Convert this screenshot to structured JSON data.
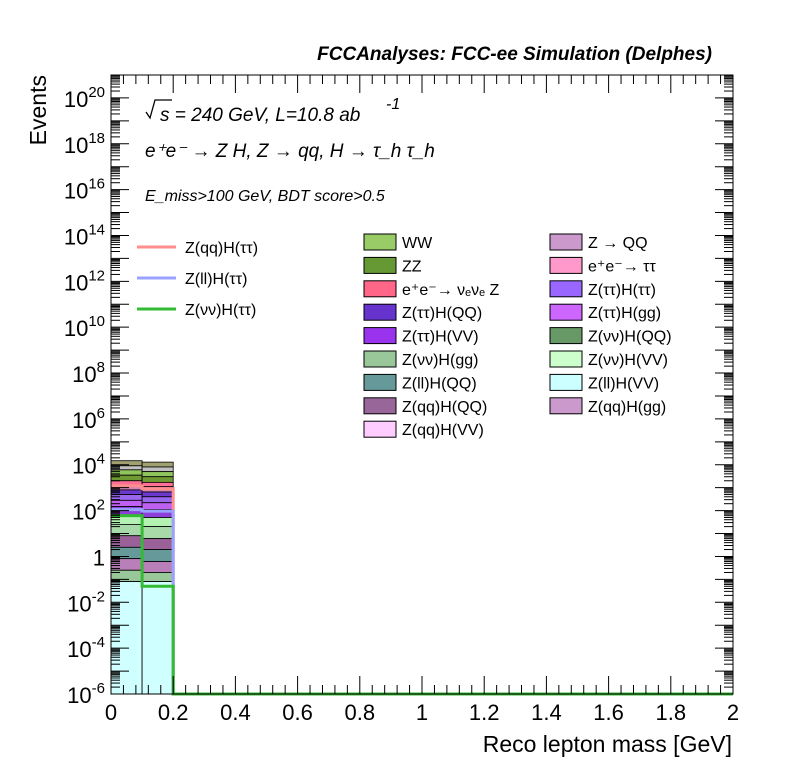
{
  "header": {
    "title": "FCCAnalyses: FCC-ee Simulation (Delphes)"
  },
  "annotations": {
    "sqrt_s": "s = 240 GeV, L=10.8 ab",
    "lumi_exp": "-1",
    "process": "e⁺e⁻ → Z H, Z → qq, H → τ_h τ_h",
    "cuts": "E_miss>100 GeV, BDT score>0.5"
  },
  "chart_data": {
    "type": "histogram",
    "title": "FCCAnalyses: FCC-ee Simulation (Delphes)",
    "xlabel": "Reco lepton mass [GeV]",
    "ylabel": "Events",
    "xlim": [
      0,
      2
    ],
    "ylim": [
      1e-06,
      1e+21
    ],
    "ylog": true,
    "x_ticks": [
      "0",
      "0.2",
      "0.4",
      "0.6",
      "0.8",
      "1",
      "1.2",
      "1.4",
      "1.6",
      "1.8",
      "2"
    ],
    "y_ticks": [
      {
        "base": "10",
        "exp": "-6"
      },
      {
        "base": "10",
        "exp": "-4"
      },
      {
        "base": "10",
        "exp": "-2"
      },
      {
        "base": "1",
        "exp": ""
      },
      {
        "base": "10",
        "exp": "2"
      },
      {
        "base": "10",
        "exp": "4"
      },
      {
        "base": "10",
        "exp": "6"
      },
      {
        "base": "10",
        "exp": "8"
      },
      {
        "base": "10",
        "exp": "10"
      },
      {
        "base": "10",
        "exp": "12"
      },
      {
        "base": "10",
        "exp": "14"
      },
      {
        "base": "10",
        "exp": "16"
      },
      {
        "base": "10",
        "exp": "18"
      },
      {
        "base": "10",
        "exp": "20"
      }
    ],
    "bin_edges": [
      0,
      0.1,
      0.2
    ],
    "stack_bin_totals": [
      15000,
      13000
    ],
    "stack_layer_tops": [
      [
        0.08,
        0.08
      ],
      [
        0.25,
        0.2
      ],
      [
        0.8,
        0.6
      ],
      [
        2.5,
        2
      ],
      [
        8,
        6
      ],
      [
        25,
        20
      ],
      [
        60,
        50
      ],
      [
        150,
        110
      ],
      [
        280,
        220
      ],
      [
        500,
        400
      ],
      [
        800,
        650
      ],
      [
        1300,
        1100
      ],
      [
        2000,
        1700
      ],
      [
        3500,
        3000
      ],
      [
        6000,
        5000
      ],
      [
        9000,
        8000
      ],
      [
        15000,
        13000
      ]
    ],
    "stack_layer_colors": [
      "#cfffff",
      "#98c79a",
      "#b97fb9",
      "#669999",
      "#9a6199",
      "#a8d9a8",
      "#b3f2b3",
      "#8f3fd9",
      "#c060f0",
      "#9966ee",
      "#6a38cc",
      "#d282b8",
      "#ff6f96",
      "#6f9933",
      "#8fc55c",
      "#c0c0c0",
      "#a0a070"
    ],
    "signals": [
      {
        "name": "Z(qq)H(ττ)",
        "color": "#ff8e8e",
        "values": [
          1200,
          900
        ]
      },
      {
        "name": "Z(ll)H(ττ)",
        "color": "#99a3ff",
        "values": [
          110,
          95
        ]
      },
      {
        "name": "Z(νν)H(ττ)",
        "color": "#33bb33",
        "values": [
          60,
          0.05
        ]
      }
    ],
    "legend_lines": [
      {
        "label": "Z(qq)H(ττ)",
        "color": "#ff8e8e"
      },
      {
        "label": "Z(ll)H(ττ)",
        "color": "#99a3ff"
      },
      {
        "label": "Z(νν)H(ττ)",
        "color": "#33bb33"
      }
    ],
    "legend_boxes_col1": [
      {
        "label": "WW",
        "color": "#99cc66"
      },
      {
        "label": "ZZ",
        "color": "#669933"
      },
      {
        "label": "e⁺e⁻→ νₑνₑ Z",
        "color": "#ff6688"
      },
      {
        "label": "Z(ττ)H(QQ)",
        "color": "#6633cc"
      },
      {
        "label": "Z(ττ)H(VV)",
        "color": "#9933ee"
      },
      {
        "label": "Z(νν)H(gg)",
        "color": "#99c799"
      },
      {
        "label": "Z(ll)H(QQ)",
        "color": "#669999"
      },
      {
        "label": "Z(qq)H(QQ)",
        "color": "#996699"
      },
      {
        "label": "Z(qq)H(VV)",
        "color": "#ffccff"
      }
    ],
    "legend_boxes_col2": [
      {
        "label": "Z → QQ",
        "color": "#cc99cc"
      },
      {
        "label": "e⁺e⁻→ ττ",
        "color": "#ff99cc"
      },
      {
        "label": "Z(ττ)H(ττ)",
        "color": "#9966ff"
      },
      {
        "label": "Z(ττ)H(gg)",
        "color": "#cc66ff"
      },
      {
        "label": "Z(νν)H(QQ)",
        "color": "#669966"
      },
      {
        "label": "Z(νν)H(VV)",
        "color": "#ccffcc"
      },
      {
        "label": "Z(ll)H(VV)",
        "color": "#ccffff"
      },
      {
        "label": "Z(qq)H(gg)",
        "color": "#cc99cc"
      }
    ]
  }
}
